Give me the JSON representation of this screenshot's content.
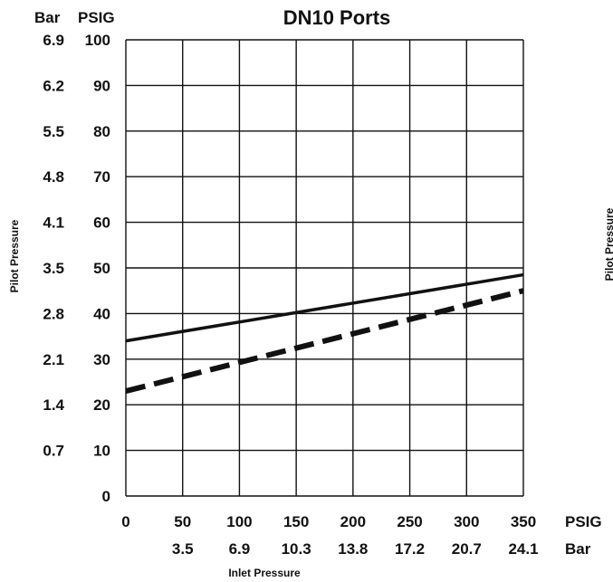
{
  "chart_data": {
    "type": "line",
    "title": "DN10 Ports",
    "xlabel": "Inlet Pressure",
    "ylabel": "Pilot Pressure",
    "xlim": [
      0,
      350
    ],
    "ylim": [
      0,
      100
    ],
    "x_ticks_psig": [
      "0",
      "50",
      "100",
      "150",
      "200",
      "250",
      "300",
      "350"
    ],
    "x_ticks_bar": [
      "",
      "3.5",
      "6.9",
      "10.3",
      "13.8",
      "17.2",
      "20.7",
      "24.1"
    ],
    "y_ticks_psig": [
      "0",
      "10",
      "20",
      "30",
      "40",
      "50",
      "60",
      "70",
      "80",
      "90",
      "100"
    ],
    "y_ticks_bar": [
      "",
      "0.7",
      "1.4",
      "2.1",
      "2.8",
      "3.5",
      "4.1",
      "4.8",
      "5.5",
      "6.2",
      "6.9"
    ],
    "x_unit_psig": "PSIG",
    "x_unit_bar": "Bar",
    "y_unit_bar": "Bar",
    "y_unit_psig": "PSIG",
    "grid": true,
    "series": [
      {
        "style": "solid",
        "color": "#111111",
        "x": [
          0,
          350
        ],
        "y": [
          34,
          48.5
        ]
      },
      {
        "style": "dashed",
        "color": "#111111",
        "x": [
          0,
          350
        ],
        "y": [
          23,
          45
        ]
      }
    ],
    "edge_text": "Pilot Pressure"
  }
}
